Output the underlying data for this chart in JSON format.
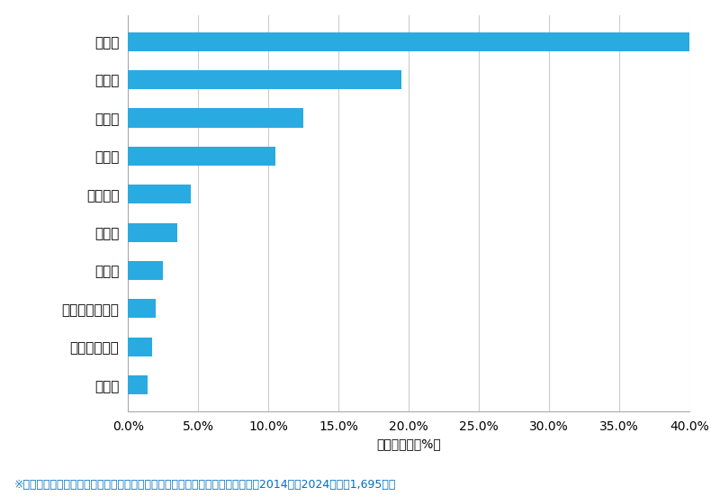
{
  "categories": [
    "福井市",
    "坂井市",
    "鯖江市",
    "越前市",
    "あわら市",
    "敦賀市",
    "大野市",
    "吉田郡永平寺町",
    "丹生郡越前町",
    "勝山市"
  ],
  "values": [
    40.5,
    19.5,
    12.5,
    10.5,
    4.5,
    3.5,
    2.5,
    2.0,
    1.7,
    1.4
  ],
  "bar_color": "#29ABE2",
  "xlabel": "件数の割合（%）",
  "xlim": [
    0,
    40.0
  ],
  "xticks": [
    0,
    5,
    10,
    15,
    20,
    25,
    30,
    35,
    40
  ],
  "xtick_labels": [
    "0.0%",
    "5.0%",
    "10.0%",
    "15.0%",
    "20.0%",
    "25.0%",
    "30.0%",
    "35.0%",
    "40.0%"
  ],
  "footnote": "※弊社受付の案件を対象に、受付時に市区町村の回答があったものを集計（期間2014年～2024年、計1,695件）",
  "footnote_color": "#0070C0",
  "background_color": "#FFFFFF",
  "grid_color": "#CCCCCC",
  "bar_height": 0.5,
  "tick_fontsize": 11,
  "label_fontsize": 10,
  "footnote_fontsize": 9
}
